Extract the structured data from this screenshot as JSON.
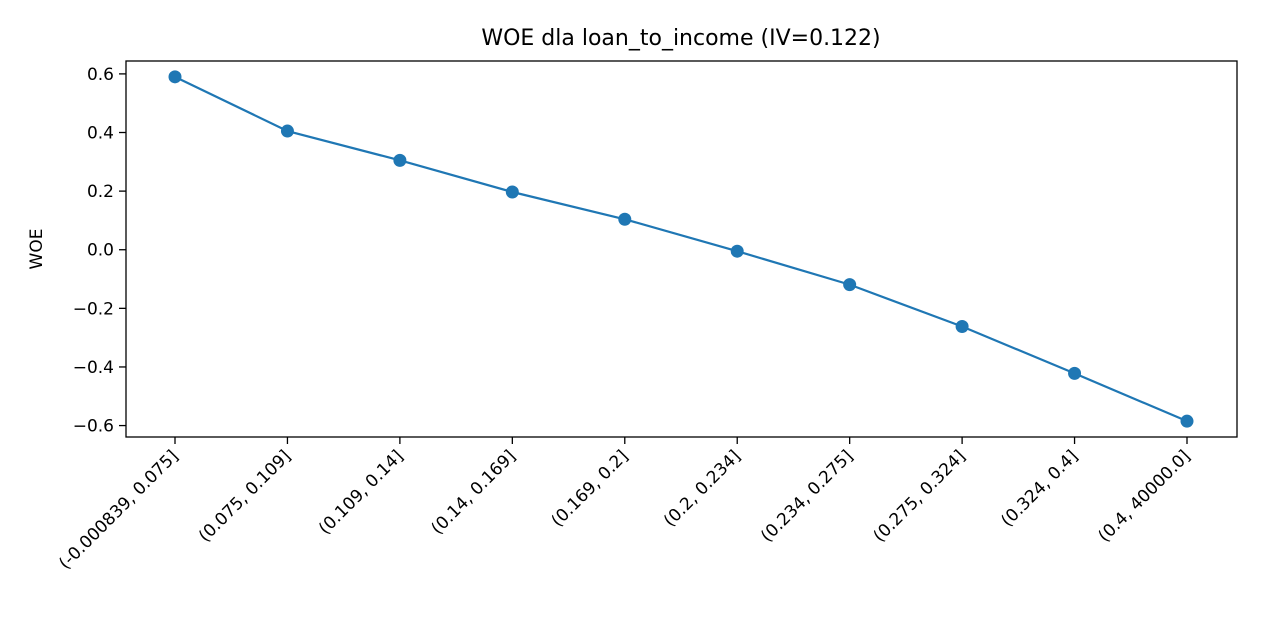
{
  "chart_data": {
    "type": "line",
    "title": "WOE dla loan_to_income (IV=0.122)",
    "xlabel": "",
    "ylabel": "WOE",
    "categories": [
      "(-0.000839, 0.075]",
      "(0.075, 0.109]",
      "(0.109, 0.14]",
      "(0.14, 0.169]",
      "(0.169, 0.2]",
      "(0.2, 0.234]",
      "(0.234, 0.275]",
      "(0.275, 0.324]",
      "(0.324, 0.4]",
      "(0.4, 40000.0]"
    ],
    "series": [
      {
        "values": [
          0.59,
          0.405,
          0.305,
          0.197,
          0.104,
          -0.005,
          -0.119,
          -0.262,
          -0.422,
          -0.585
        ],
        "color": "#1f77b4",
        "marker": "circle"
      }
    ],
    "yticks": [
      {
        "value": 0.6,
        "label": "0.6"
      },
      {
        "value": 0.4,
        "label": "0.4"
      },
      {
        "value": 0.2,
        "label": "0.2"
      },
      {
        "value": 0.0,
        "label": "0.0"
      },
      {
        "value": -0.2,
        "label": "−0.2"
      },
      {
        "value": -0.4,
        "label": "−0.4"
      },
      {
        "value": -0.6,
        "label": "−0.6"
      }
    ],
    "ylim": [
      -0.639,
      0.644
    ],
    "grid": false,
    "legend": "none"
  }
}
